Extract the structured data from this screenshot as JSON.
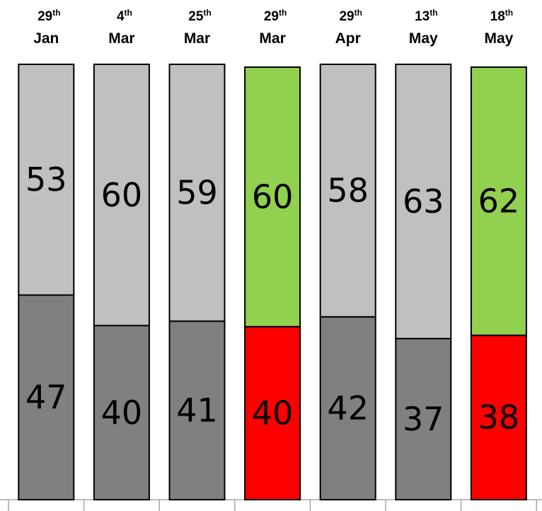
{
  "chart_data": {
    "type": "bar",
    "stacked": true,
    "normalized_percent": true,
    "categories": [
      {
        "day": "29",
        "suffix": "th",
        "month": "Jan"
      },
      {
        "day": "4",
        "suffix": "th",
        "month": "Mar"
      },
      {
        "day": "25",
        "suffix": "th",
        "month": "Mar"
      },
      {
        "day": "29",
        "suffix": "th",
        "month": "Mar"
      },
      {
        "day": "29",
        "suffix": "th",
        "month": "Apr"
      },
      {
        "day": "13",
        "suffix": "th",
        "month": "May"
      },
      {
        "day": "18",
        "suffix": "th",
        "month": "May"
      }
    ],
    "series": [
      {
        "position": "bottom",
        "values": [
          47,
          40,
          41,
          40,
          42,
          37,
          38
        ]
      },
      {
        "position": "top",
        "values": [
          53,
          60,
          59,
          60,
          58,
          63,
          62
        ]
      }
    ],
    "highlighted": [
      false,
      false,
      false,
      true,
      false,
      false,
      true
    ],
    "colors": {
      "bottom_default": "#808080",
      "top_default": "#c0c0c0",
      "bottom_highlight": "#ff0000",
      "top_highlight": "#92d050",
      "stroke": "#000000",
      "axis": "#a6a6a6"
    },
    "ylim": [
      0,
      100
    ],
    "title": "",
    "xlabel": "",
    "ylabel": "",
    "legend": "none",
    "grid": false
  }
}
